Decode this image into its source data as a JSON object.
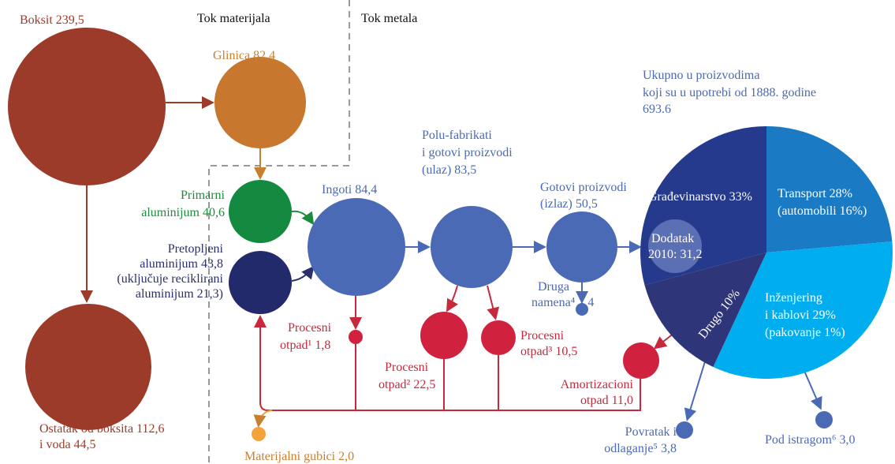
{
  "headers": {
    "material": "Tok materijala",
    "metal": "Tok metala"
  },
  "bauxite": [
    "Boksit 239,5"
  ],
  "alumina": [
    "Glinica 82,4"
  ],
  "primary": [
    "Primarni",
    "aluminijum 40,6"
  ],
  "remelted": [
    "Pretopljeni",
    "aluminijum 43,8",
    "(uključuje reciklirani",
    "aluminijum 21,3)"
  ],
  "ingots": [
    "Ingoti 84,4"
  ],
  "semi": [
    "Polu-fabrikati",
    "i gotovi proizvodi",
    "(ulaz) 83,5"
  ],
  "finished": [
    "Gotovi proizvodi",
    "(izlaz) 50,5"
  ],
  "other_use": [
    "Druga",
    "namena⁴ 1,4"
  ],
  "scrap1": [
    "Procesni",
    "otpad¹ 1,8"
  ],
  "scrap2": [
    "Procesni",
    "otpad² 22,5"
  ],
  "scrap3": [
    "Procesni",
    "otpad³ 10,5"
  ],
  "eol_scrap": [
    "Amortizacioni",
    "otpad 11,0"
  ],
  "residue": [
    "Ostatak od boksita 112,6",
    "i voda  44,5"
  ],
  "losses": [
    "Materijalni gubici 2,0"
  ],
  "return": [
    "Povratak i",
    "odlaganje⁵ 3,8"
  ],
  "unknown": [
    "Pod istragom⁶ 3,0"
  ],
  "stock": {
    "title": [
      "Ukupno u proizvodima",
      "koji su u upotrebi od 1888. godine",
      "693.6"
    ],
    "construction": [
      "Građevinarstvo 33%"
    ],
    "transport": [
      "Transport 28%",
      "(automobili 16%)"
    ],
    "engineering": [
      "Inženjering",
      "i kablovi 29%",
      "(pakovanje 1%)"
    ],
    "other": [
      "Drugo 10%"
    ],
    "addition": [
      "Dodatak",
      "2010: 31,2"
    ]
  }
}
